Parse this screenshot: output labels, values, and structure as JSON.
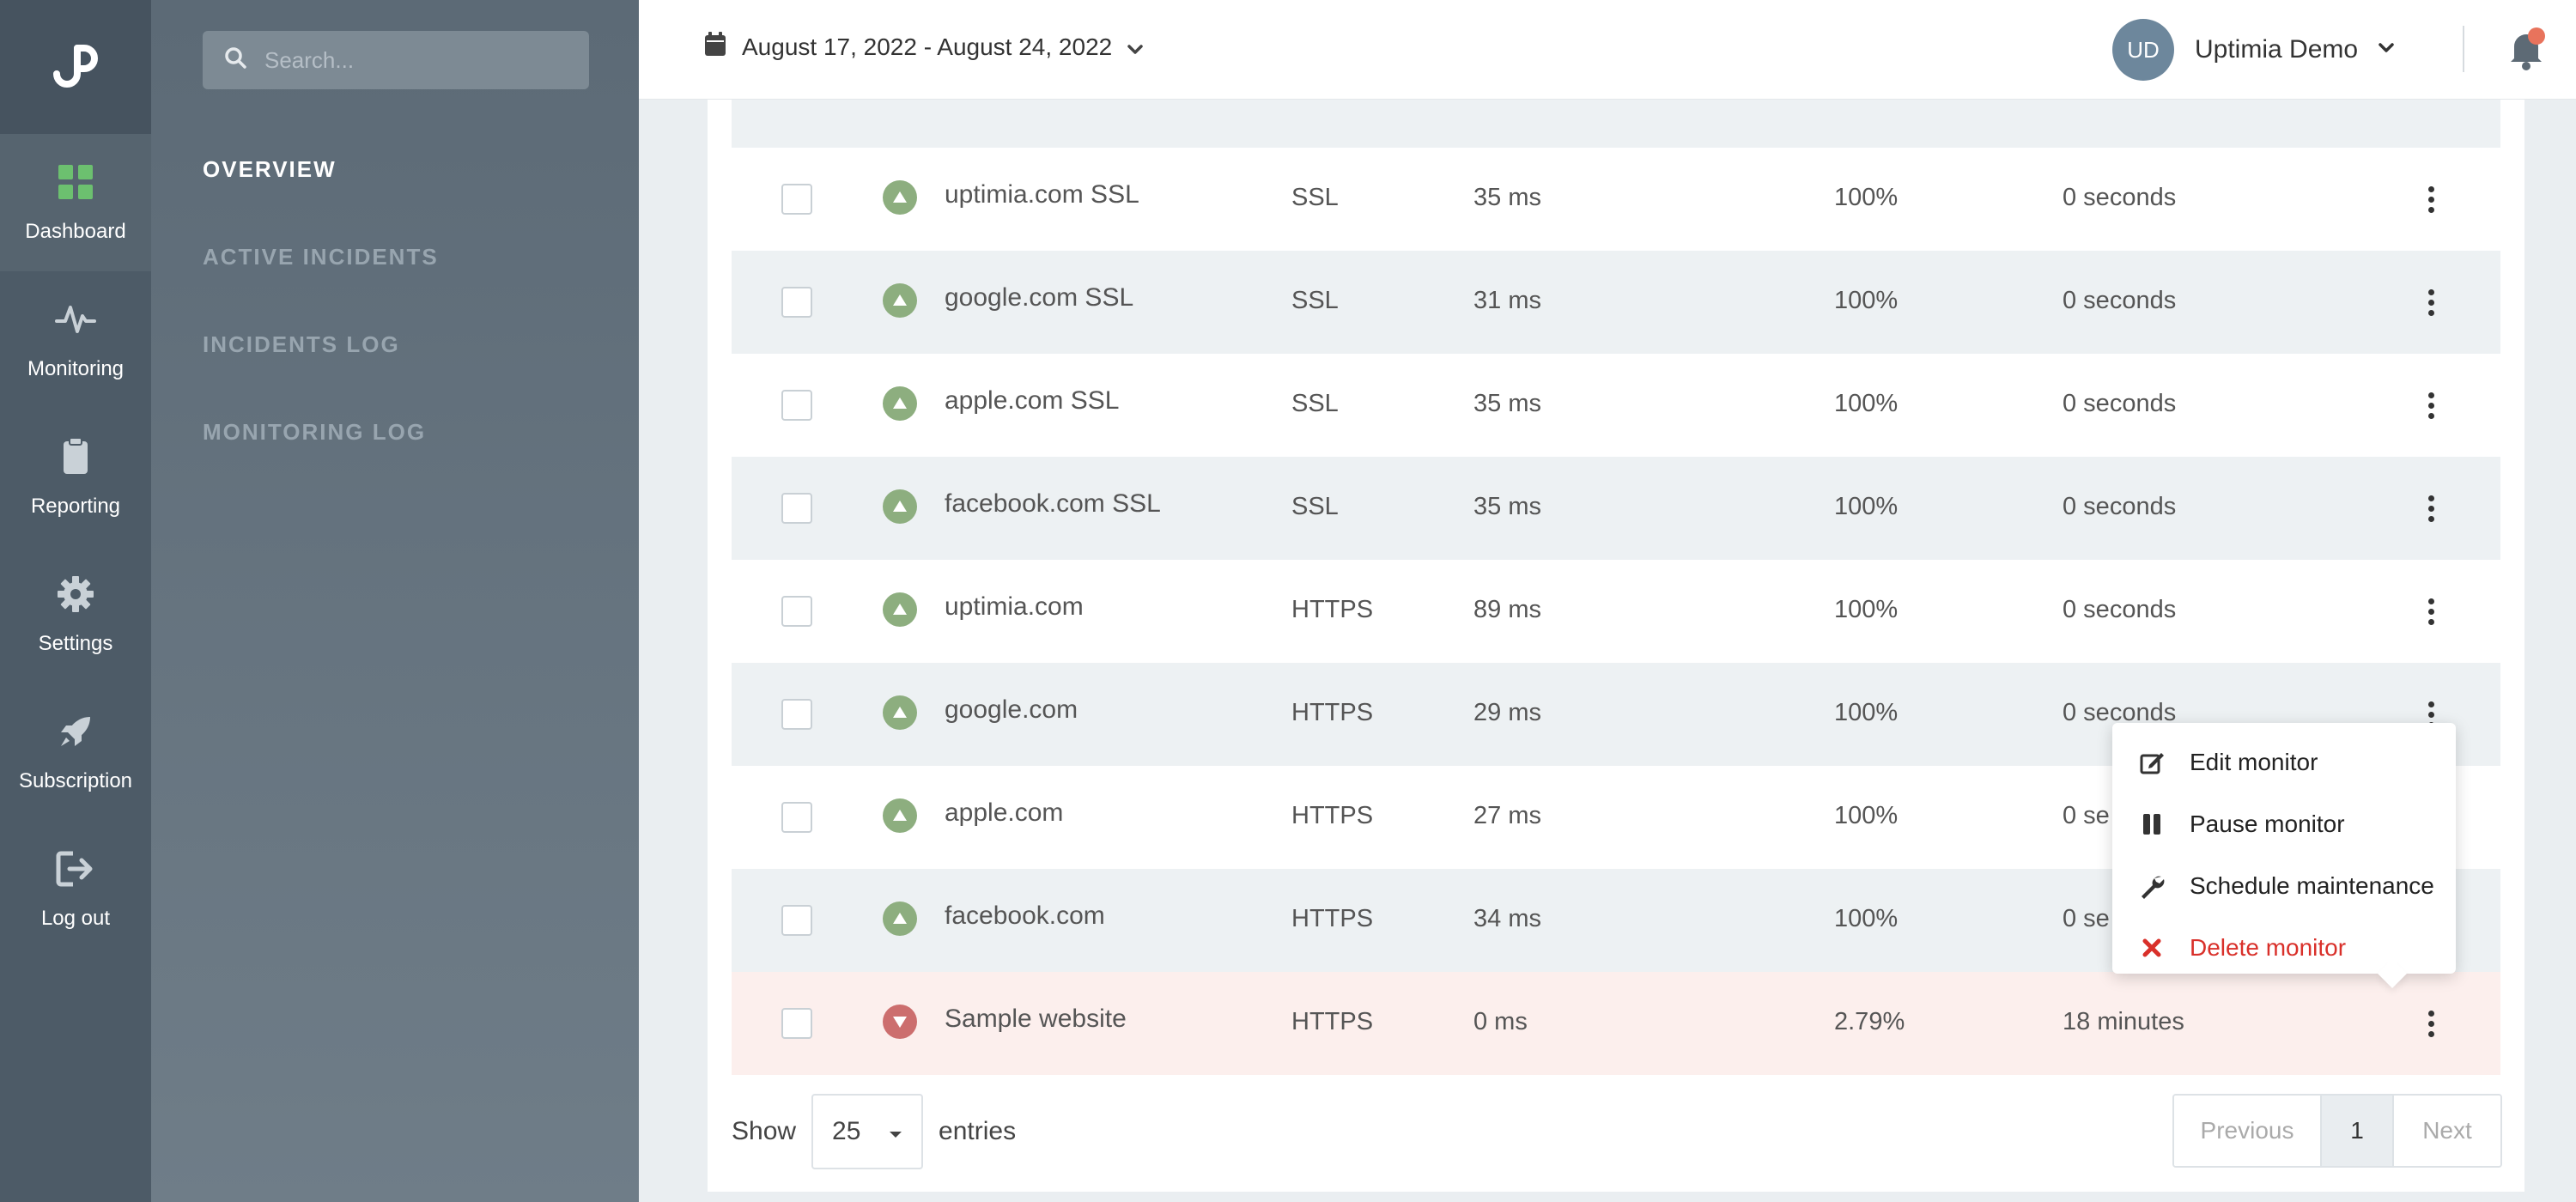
{
  "nav": {
    "logo_icon": "uptimia-logo-icon",
    "items": [
      {
        "label": "Dashboard",
        "icon": "grid-icon",
        "active": true
      },
      {
        "label": "Monitoring",
        "icon": "pulse-icon"
      },
      {
        "label": "Reporting",
        "icon": "clipboard-icon"
      },
      {
        "label": "Settings",
        "icon": "gear-icon"
      },
      {
        "label": "Subscription",
        "icon": "rocket-icon"
      },
      {
        "label": "Log out",
        "icon": "logout-icon"
      }
    ]
  },
  "subnav": {
    "search_placeholder": "Search...",
    "items": [
      {
        "label": "OVERVIEW",
        "active": true
      },
      {
        "label": "ACTIVE INCIDENTS"
      },
      {
        "label": "INCIDENTS LOG"
      },
      {
        "label": "MONITORING LOG"
      }
    ]
  },
  "header": {
    "date_range": "August 17, 2022 - August 24, 2022",
    "user_initials": "UD",
    "user_name": "Uptimia Demo"
  },
  "monitors": [
    {
      "name": "uptimia.com SSL",
      "type": "SSL",
      "response": "35 ms",
      "uptime": "100%",
      "downtime": "0 seconds",
      "status": "up"
    },
    {
      "name": "google.com SSL",
      "type": "SSL",
      "response": "31 ms",
      "uptime": "100%",
      "downtime": "0 seconds",
      "status": "up"
    },
    {
      "name": "apple.com SSL",
      "type": "SSL",
      "response": "35 ms",
      "uptime": "100%",
      "downtime": "0 seconds",
      "status": "up"
    },
    {
      "name": "facebook.com SSL",
      "type": "SSL",
      "response": "35 ms",
      "uptime": "100%",
      "downtime": "0 seconds",
      "status": "up"
    },
    {
      "name": "uptimia.com",
      "type": "HTTPS",
      "response": "89 ms",
      "uptime": "100%",
      "downtime": "0 seconds",
      "status": "up"
    },
    {
      "name": "google.com",
      "type": "HTTPS",
      "response": "29 ms",
      "uptime": "100%",
      "downtime": "0 seconds",
      "status": "up"
    },
    {
      "name": "apple.com",
      "type": "HTTPS",
      "response": "27 ms",
      "uptime": "100%",
      "downtime": "0 se",
      "status": "up"
    },
    {
      "name": "facebook.com",
      "type": "HTTPS",
      "response": "34 ms",
      "uptime": "100%",
      "downtime": "0 se",
      "status": "up"
    },
    {
      "name": "Sample website",
      "type": "HTTPS",
      "response": "0 ms",
      "uptime": "2.79%",
      "downtime": "18 minutes",
      "status": "down"
    }
  ],
  "footer": {
    "show_label": "Show",
    "page_size": "25",
    "entries_label": "entries",
    "prev_label": "Previous",
    "current_page": "1",
    "next_label": "Next"
  },
  "menu": {
    "items": [
      {
        "label": "Edit monitor",
        "icon": "edit-icon"
      },
      {
        "label": "Pause monitor",
        "icon": "pause-icon"
      },
      {
        "label": "Schedule maintenance",
        "icon": "wrench-icon"
      },
      {
        "label": "Delete monitor",
        "icon": "close-icon",
        "danger": true
      }
    ]
  },
  "colors": {
    "status_up": "#8dae7f",
    "status_down": "#cc6e6e",
    "danger": "#d9302a",
    "dashboard_icon": "#6cc06f"
  }
}
